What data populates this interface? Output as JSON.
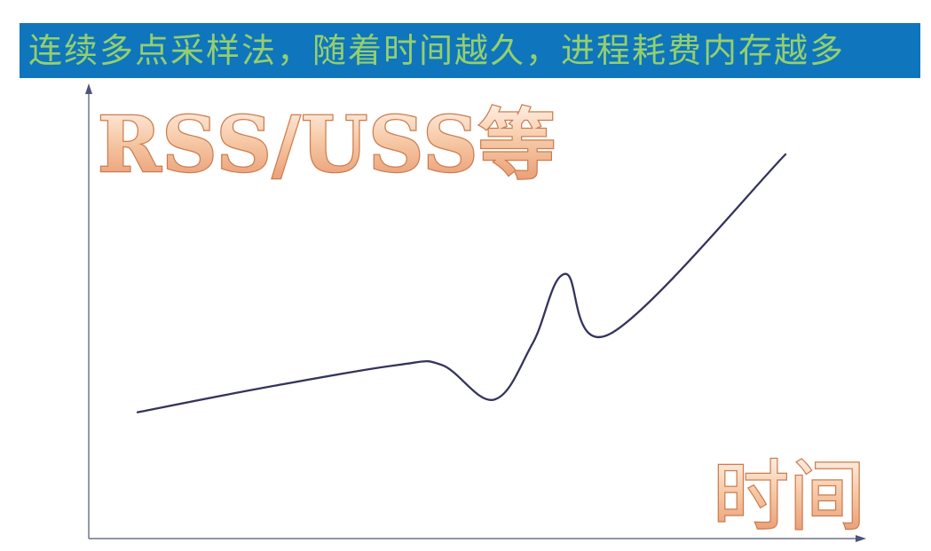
{
  "title": "连续多点采样法，随着时间越久，进程耗费内存越多",
  "chart_data": {
    "type": "line",
    "ylabel": "RSS/USS等",
    "xlabel": "时间",
    "grid": false,
    "series": [
      {
        "x": [
          0.0,
          0.2,
          0.4,
          0.47,
          0.55,
          0.61,
          0.66,
          0.73,
          1.0
        ],
        "y": [
          0.08,
          0.16,
          0.23,
          0.23,
          0.12,
          0.3,
          0.52,
          0.33,
          0.9
        ]
      }
    ]
  },
  "colors": {
    "banner": "#0f75bd",
    "title_text": "#93d06d",
    "axis": "#4e5478",
    "curve": "#35345c",
    "label_light": "#fbe5d4",
    "label_dark": "#e7946b"
  }
}
